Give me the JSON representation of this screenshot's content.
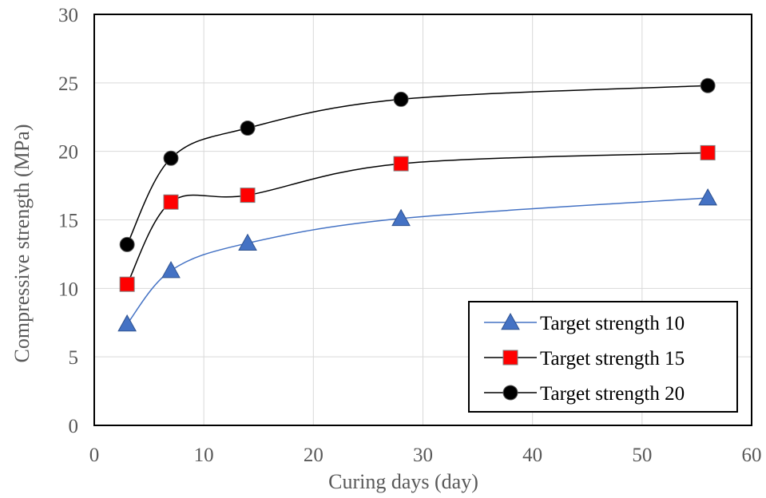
{
  "chart_data": {
    "type": "line",
    "title": "",
    "xlabel": "Curing  days (day)",
    "ylabel": "Compressive  strength  (MPa)",
    "xlim": [
      0,
      60
    ],
    "ylim": [
      0,
      30
    ],
    "xticks": [
      0,
      10,
      20,
      30,
      40,
      50,
      60
    ],
    "yticks": [
      0,
      5,
      10,
      15,
      20,
      25,
      30
    ],
    "grid": true,
    "legend_position": "bottom-right",
    "x": [
      3,
      7,
      14,
      28,
      56
    ],
    "series": [
      {
        "name": "Target strength 10",
        "marker": "triangle",
        "color": "#4472c4",
        "line_color": "#4472c4",
        "values": [
          7.4,
          11.3,
          13.3,
          15.1,
          16.6
        ]
      },
      {
        "name": "Target strength 15",
        "marker": "square",
        "color": "#ff0000",
        "line_color": "#000000",
        "values": [
          10.3,
          16.3,
          16.8,
          19.1,
          19.9
        ]
      },
      {
        "name": "Target strength 20",
        "marker": "circle",
        "color": "#000000",
        "line_color": "#000000",
        "values": [
          13.2,
          19.5,
          21.7,
          23.8,
          24.8
        ]
      }
    ]
  }
}
